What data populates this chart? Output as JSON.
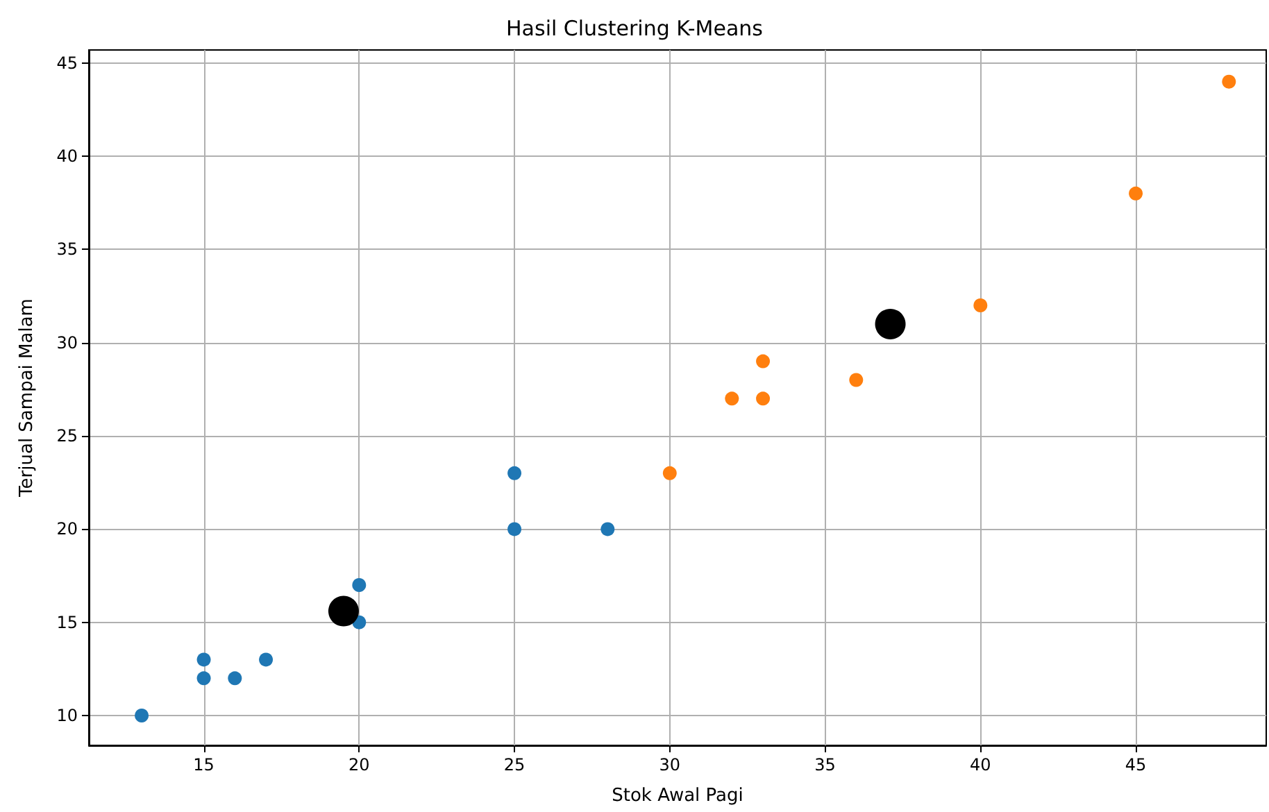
{
  "chart_data": {
    "type": "scatter",
    "title": "Hasil Clustering K-Means",
    "xlabel": "Stok Awal Pagi",
    "ylabel": "Terjual Sampai Malam",
    "xlim": [
      11.3,
      49.2
    ],
    "xticks": [
      15,
      20,
      25,
      30,
      35,
      40,
      45
    ],
    "ylim": [
      8.4,
      45.7
    ],
    "yticks": [
      10,
      15,
      20,
      25,
      30,
      35,
      40,
      45
    ],
    "grid": true,
    "marker": "circle",
    "series": [
      {
        "color": "#1f77b4",
        "x": [
          13,
          15,
          15,
          16,
          17,
          20,
          20,
          25,
          25,
          28
        ],
        "values": [
          10,
          13,
          12,
          12,
          13,
          17,
          15,
          23,
          20,
          20
        ]
      },
      {
        "color": "#ff7f0e",
        "x": [
          30,
          32,
          33,
          33,
          36,
          40,
          45,
          48
        ],
        "values": [
          23,
          27,
          29,
          27,
          28,
          32,
          38,
          44
        ]
      },
      {
        "color": "#000000",
        "x": [
          19.5,
          37.1
        ],
        "values": [
          15.6,
          31
        ]
      }
    ]
  }
}
